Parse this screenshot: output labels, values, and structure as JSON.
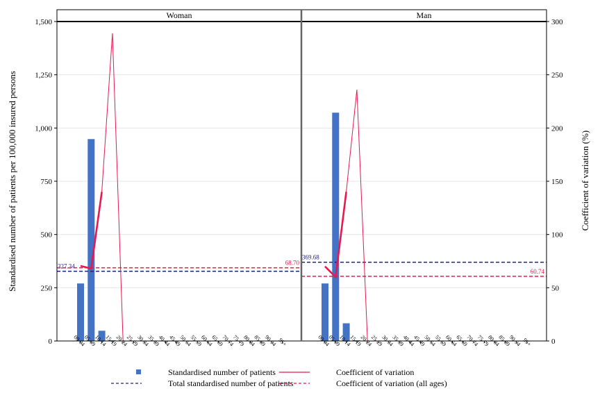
{
  "chart_data": {
    "type": "bar",
    "panels": [
      "Woman",
      "Man"
    ],
    "categories": [
      "00-04",
      "05-09",
      "10-14",
      "15-19",
      "20-24",
      "25-29",
      "30-34",
      "35-39",
      "40-44",
      "45-49",
      "50-54",
      "55-59",
      "60-64",
      "65-69",
      "70-74",
      "75-79",
      "80-84",
      "85-89",
      "90-94",
      "95+"
    ],
    "ylabel": "Standardised number of patients per 100,000 insured persons",
    "y2label": "Coefficient of variation (%)",
    "ylim": [
      0,
      1500
    ],
    "y2lim": [
      0,
      300
    ],
    "yticks": [
      "0",
      "250",
      "500",
      "750",
      "1,000",
      "1,250",
      "1,500"
    ],
    "y2ticks": [
      "0",
      "50",
      "100",
      "150",
      "200",
      "250",
      "300"
    ],
    "grid": true,
    "series": [
      {
        "name": "Standardised number of patients",
        "kind": "bar",
        "color": "#4472c4",
        "values": {
          "Woman": [
            270,
            948,
            48,
            3,
            0,
            0,
            0,
            0,
            0,
            0,
            0,
            0,
            0,
            0,
            0,
            0,
            0,
            0,
            0,
            0
          ],
          "Man": [
            270,
            1072,
            83,
            3,
            0,
            0,
            0,
            0,
            0,
            0,
            0,
            0,
            0,
            0,
            0,
            0,
            0,
            0,
            0,
            0
          ]
        }
      },
      {
        "name": "Coefficient of variation",
        "kind": "line",
        "axis": "right",
        "color": "#e8174f",
        "values": {
          "Woman": [
            70.5,
            68.0,
            140.0,
            289.0,
            0
          ],
          "Man": [
            70.0,
            60.0,
            140.0,
            236.0,
            0
          ]
        }
      }
    ],
    "reference_lines": [
      {
        "name": "Total standardised number of patients",
        "color": "#1f1f7a",
        "axis": "left",
        "values": {
          "Woman": 327.34,
          "Man": 369.68
        },
        "labels": {
          "Woman": "327.34",
          "Man": "369.68"
        }
      },
      {
        "name": "Coefficient of variation (all ages)",
        "color": "#e8174f",
        "axis": "right",
        "values": {
          "Woman": 68.7,
          "Man": 60.74
        },
        "labels": {
          "Woman": "68.70",
          "Man": "60.74"
        }
      }
    ],
    "legend": [
      {
        "label": "Standardised number of patients",
        "marker": "square",
        "color": "#4472c4"
      },
      {
        "label": "Coefficient of variation",
        "marker": "solid-line",
        "color": "#e8174f"
      },
      {
        "label": "Total standardised number of patients",
        "marker": "dashed-line",
        "color": "#1f1f7a"
      },
      {
        "label": "Coefficient of variation (all ages)",
        "marker": "dashed-line",
        "color": "#e8174f"
      }
    ],
    "legend_position": "bottom"
  }
}
